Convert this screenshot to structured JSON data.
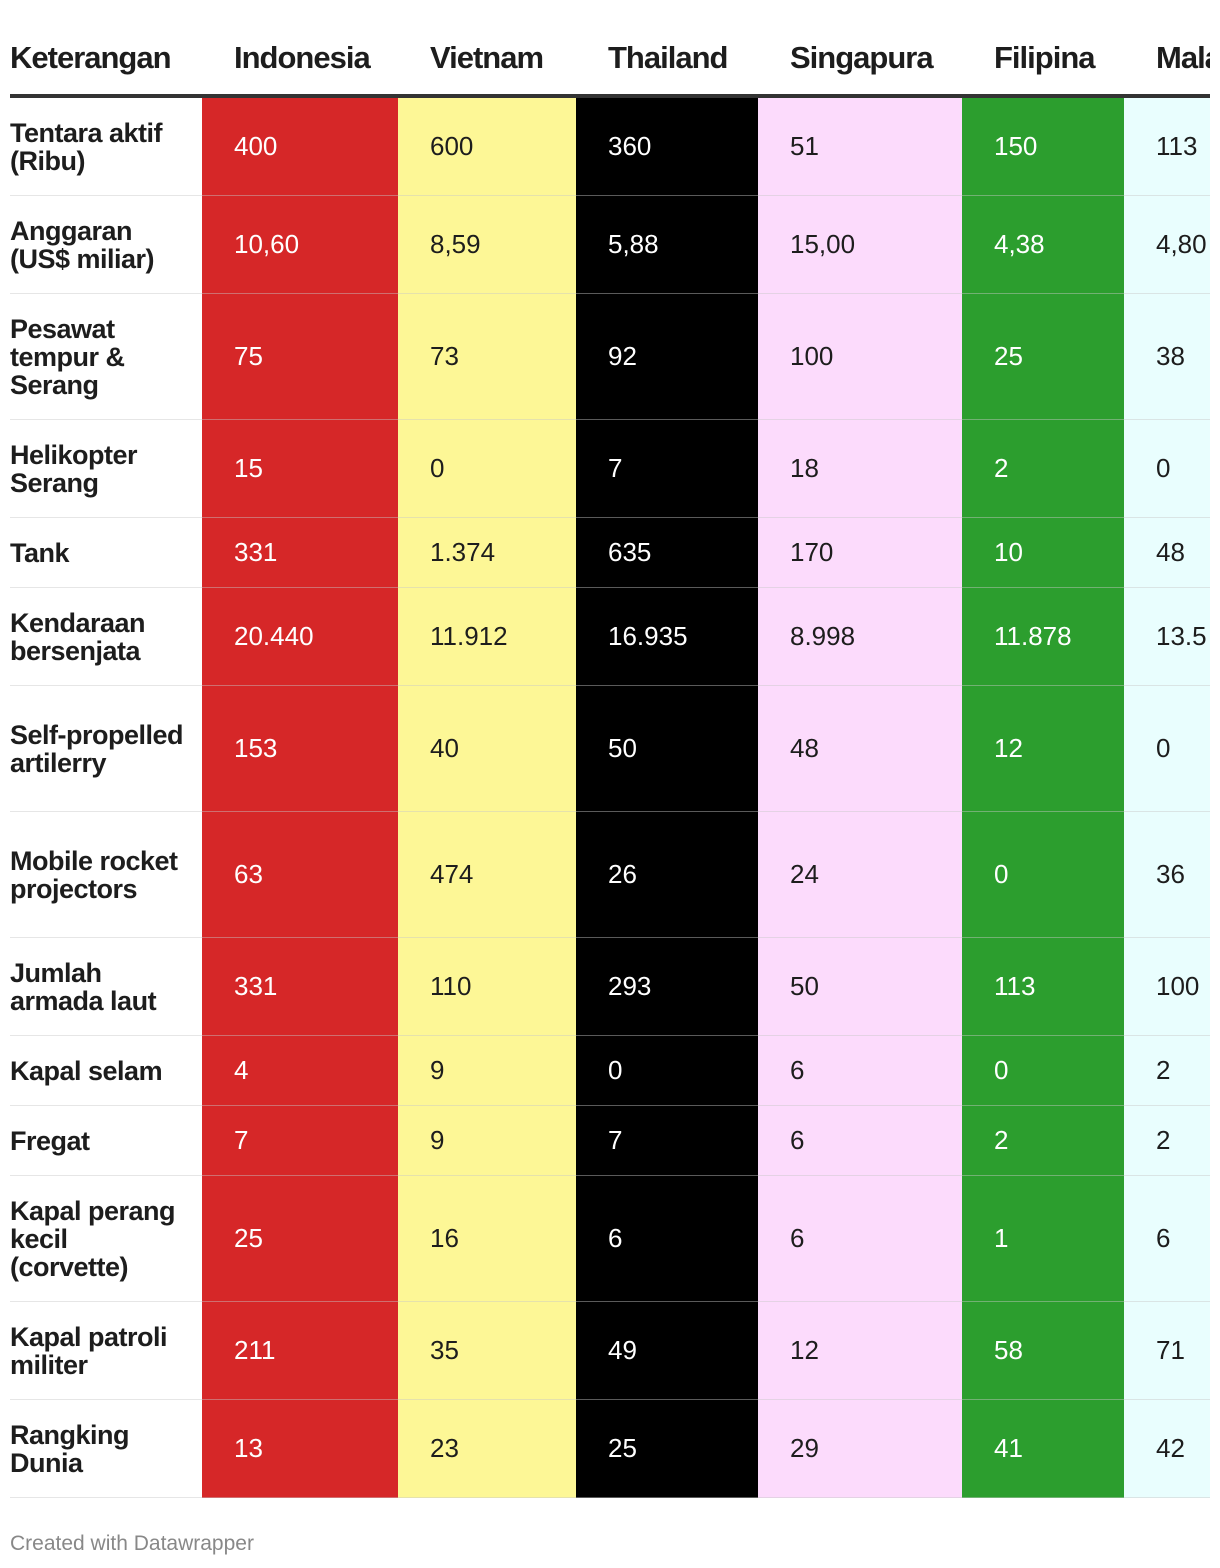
{
  "chart_data": {
    "type": "table",
    "header_label": "Keterangan",
    "columns": [
      {
        "name": "Indonesia",
        "color": "#d62728",
        "text_color": "#ffffff"
      },
      {
        "name": "Vietnam",
        "color": "#fdf796",
        "text_color": "#1d1d1d"
      },
      {
        "name": "Thailand",
        "color": "#000000",
        "text_color": "#ffffff"
      },
      {
        "name": "Singapura",
        "color": "#fcdbfc",
        "text_color": "#1d1d1d"
      },
      {
        "name": "Filipina",
        "color": "#2c9e2e",
        "text_color": "#ffffff"
      },
      {
        "name": "Malaysia",
        "color": "#e9fefe",
        "text_color": "#1d1d1d"
      }
    ],
    "rows": [
      {
        "label": "Tentara aktif (Ribu)",
        "values": [
          "400",
          "600",
          "360",
          "51",
          "150",
          "113"
        ]
      },
      {
        "label": "Anggaran (US$ miliar)",
        "values": [
          "10,60",
          "8,59",
          "5,88",
          "15,00",
          "4,38",
          "4,80"
        ]
      },
      {
        "label": "Pesawat tempur & Serang",
        "values": [
          "75",
          "73",
          "92",
          "100",
          "25",
          "38"
        ]
      },
      {
        "label": "Helikopter Serang",
        "values": [
          "15",
          "0",
          "7",
          "18",
          "2",
          "0"
        ]
      },
      {
        "label": "Tank",
        "values": [
          "331",
          "1.374",
          "635",
          "170",
          "10",
          "48"
        ]
      },
      {
        "label": "Kendaraan bersenjata",
        "values": [
          "20.440",
          "11.912",
          "16.935",
          "8.998",
          "11.878",
          "13.5"
        ]
      },
      {
        "label": "Self-propelled artilerry",
        "values": [
          "153",
          "40",
          "50",
          "48",
          "12",
          "0"
        ]
      },
      {
        "label": "Mobile rocket projectors",
        "values": [
          "63",
          "474",
          "26",
          "24",
          "0",
          "36"
        ]
      },
      {
        "label": "Jumlah armada laut",
        "values": [
          "331",
          "110",
          "293",
          "50",
          "113",
          "100"
        ]
      },
      {
        "label": "Kapal selam",
        "values": [
          "4",
          "9",
          "0",
          "6",
          "0",
          "2"
        ]
      },
      {
        "label": "Fregat",
        "values": [
          "7",
          "9",
          "7",
          "6",
          "2",
          "2"
        ]
      },
      {
        "label": "Kapal perang kecil (corvette)",
        "values": [
          "25",
          "16",
          "6",
          "6",
          "1",
          "6"
        ]
      },
      {
        "label": "Kapal patroli militer",
        "values": [
          "211",
          "35",
          "49",
          "12",
          "58",
          "71"
        ]
      },
      {
        "label": "Rangking Dunia",
        "values": [
          "13",
          "23",
          "25",
          "29",
          "41",
          "42"
        ]
      }
    ]
  },
  "footer": {
    "credit": "Created with Datawrapper"
  }
}
